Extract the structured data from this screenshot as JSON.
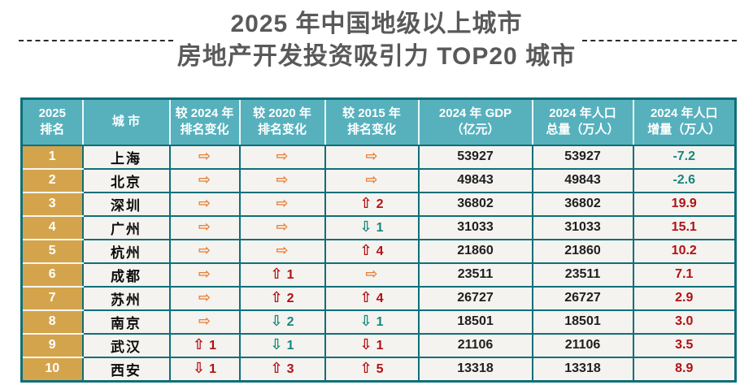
{
  "title": {
    "line1": "2025 年中国地级以上城市",
    "line2": "房地产开发投资吸引力 TOP20 城市"
  },
  "colors": {
    "header_bg": "#56b1bd",
    "border": "#0e6f79",
    "rank_bg": "#d4a44c",
    "cell_bg": "#f4f3ef",
    "title_text": "#595959",
    "arrow_orange": "#e87e35",
    "arrow_red": "#b01116",
    "arrow_teal": "#16877e"
  },
  "icons": {
    "right": "⇨",
    "up": "⇧",
    "down": "⇩"
  },
  "table": {
    "headers": [
      {
        "line1": "2025",
        "line2": "排名"
      },
      {
        "line1": "城 市",
        "line2": ""
      },
      {
        "line1": "较 2024 年",
        "line2": "排名变化"
      },
      {
        "line1": "较 2020 年",
        "line2": "排名变化"
      },
      {
        "line1": "较 2015 年",
        "line2": "排名变化"
      },
      {
        "line1": "2024 年 GDP",
        "line2": "（亿元）"
      },
      {
        "line1": "2024 年人口",
        "line2": "总量（万人）"
      },
      {
        "line1": "2024 年人口",
        "line2": "增量（万人）"
      }
    ],
    "rows": [
      {
        "rank": "1",
        "city": "上海",
        "changes": [
          {
            "dir": "right",
            "num": "",
            "color": "orange"
          },
          {
            "dir": "right",
            "num": "",
            "color": "orange"
          },
          {
            "dir": "right",
            "num": "",
            "color": "orange"
          }
        ],
        "gdp": "53927",
        "pop_total": "53927",
        "pop_growth": "-7.2",
        "growth_color": "teal"
      },
      {
        "rank": "2",
        "city": "北京",
        "changes": [
          {
            "dir": "right",
            "num": "",
            "color": "orange"
          },
          {
            "dir": "right",
            "num": "",
            "color": "orange"
          },
          {
            "dir": "right",
            "num": "",
            "color": "orange"
          }
        ],
        "gdp": "49843",
        "pop_total": "49843",
        "pop_growth": "-2.6",
        "growth_color": "teal"
      },
      {
        "rank": "3",
        "city": "深圳",
        "changes": [
          {
            "dir": "right",
            "num": "",
            "color": "orange"
          },
          {
            "dir": "right",
            "num": "",
            "color": "orange"
          },
          {
            "dir": "up",
            "num": "2",
            "color": "red"
          }
        ],
        "gdp": "36802",
        "pop_total": "36802",
        "pop_growth": "19.9",
        "growth_color": "red"
      },
      {
        "rank": "4",
        "city": "广州",
        "changes": [
          {
            "dir": "right",
            "num": "",
            "color": "orange"
          },
          {
            "dir": "right",
            "num": "",
            "color": "orange"
          },
          {
            "dir": "down",
            "num": "1",
            "color": "teal"
          }
        ],
        "gdp": "31033",
        "pop_total": "31033",
        "pop_growth": "15.1",
        "growth_color": "red"
      },
      {
        "rank": "5",
        "city": "杭州",
        "changes": [
          {
            "dir": "right",
            "num": "",
            "color": "orange"
          },
          {
            "dir": "right",
            "num": "",
            "color": "orange"
          },
          {
            "dir": "up",
            "num": "4",
            "color": "red"
          }
        ],
        "gdp": "21860",
        "pop_total": "21860",
        "pop_growth": "10.2",
        "growth_color": "red"
      },
      {
        "rank": "6",
        "city": "成都",
        "changes": [
          {
            "dir": "right",
            "num": "",
            "color": "orange"
          },
          {
            "dir": "up",
            "num": "1",
            "color": "red"
          },
          {
            "dir": "right",
            "num": "",
            "color": "orange"
          }
        ],
        "gdp": "23511",
        "pop_total": "23511",
        "pop_growth": "7.1",
        "growth_color": "red"
      },
      {
        "rank": "7",
        "city": "苏州",
        "changes": [
          {
            "dir": "right",
            "num": "",
            "color": "orange"
          },
          {
            "dir": "up",
            "num": "2",
            "color": "red"
          },
          {
            "dir": "up",
            "num": "4",
            "color": "red"
          }
        ],
        "gdp": "26727",
        "pop_total": "26727",
        "pop_growth": "2.9",
        "growth_color": "red"
      },
      {
        "rank": "8",
        "city": "南京",
        "changes": [
          {
            "dir": "right",
            "num": "",
            "color": "orange"
          },
          {
            "dir": "down",
            "num": "2",
            "color": "teal"
          },
          {
            "dir": "down",
            "num": "1",
            "color": "teal"
          }
        ],
        "gdp": "18501",
        "pop_total": "18501",
        "pop_growth": "3.0",
        "growth_color": "red"
      },
      {
        "rank": "9",
        "city": "武汉",
        "changes": [
          {
            "dir": "up",
            "num": "1",
            "color": "red"
          },
          {
            "dir": "down",
            "num": "1",
            "color": "teal"
          },
          {
            "dir": "down",
            "num": "1",
            "color": "red"
          }
        ],
        "gdp": "21106",
        "pop_total": "21106",
        "pop_growth": "3.5",
        "growth_color": "red"
      },
      {
        "rank": "10",
        "city": "西安",
        "changes": [
          {
            "dir": "down",
            "num": "1",
            "color": "red"
          },
          {
            "dir": "up",
            "num": "3",
            "color": "red"
          },
          {
            "dir": "up",
            "num": "5",
            "color": "red"
          }
        ],
        "gdp": "13318",
        "pop_total": "13318",
        "pop_growth": "8.9",
        "growth_color": "red"
      }
    ]
  },
  "chart_data": {
    "type": "table",
    "title": "2025 年中国地级以上城市 房地产开发投资吸引力 TOP20 城市",
    "columns": [
      "2025 排名",
      "城市",
      "较 2024 年排名变化",
      "较 2020 年排名变化",
      "较 2015 年排名变化",
      "2024 年 GDP（亿元）",
      "2024 年人口总量（万人）",
      "2024 年人口增量（万人）"
    ],
    "rows": [
      [
        "1",
        "上海",
        "→",
        "→",
        "→",
        53927,
        53927,
        -7.2
      ],
      [
        "2",
        "北京",
        "→",
        "→",
        "→",
        49843,
        49843,
        -2.6
      ],
      [
        "3",
        "深圳",
        "→",
        "→",
        "↑2",
        36802,
        36802,
        19.9
      ],
      [
        "4",
        "广州",
        "→",
        "→",
        "↓1",
        31033,
        31033,
        15.1
      ],
      [
        "5",
        "杭州",
        "→",
        "→",
        "↑4",
        21860,
        21860,
        10.2
      ],
      [
        "6",
        "成都",
        "→",
        "↑1",
        "→",
        23511,
        23511,
        7.1
      ],
      [
        "7",
        "苏州",
        "→",
        "↑2",
        "↑4",
        26727,
        26727,
        2.9
      ],
      [
        "8",
        "南京",
        "→",
        "↓2",
        "↓1",
        18501,
        18501,
        3.0
      ],
      [
        "9",
        "武汉",
        "↑1",
        "↓1",
        "↓1",
        21106,
        21106,
        3.5
      ],
      [
        "10",
        "西安",
        "↓1",
        "↑3",
        "↑5",
        13318,
        13318,
        8.9
      ]
    ]
  }
}
